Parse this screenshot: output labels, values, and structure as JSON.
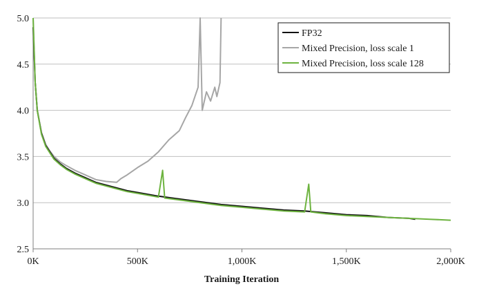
{
  "chart_data": {
    "type": "line",
    "title": "",
    "xlabel": "Training Iteration",
    "ylabel": "",
    "xlim": [
      0,
      2000000
    ],
    "ylim": [
      2.5,
      5.0
    ],
    "x_ticks": [
      0,
      500000,
      1000000,
      1500000,
      2000000
    ],
    "x_tick_labels": [
      "0K",
      "500K",
      "1,000K",
      "1,500K",
      "2,000K"
    ],
    "y_ticks": [
      2.5,
      3.0,
      3.5,
      4.0,
      4.5,
      5.0
    ],
    "y_tick_labels": [
      "2.5",
      "3.0",
      "3.5",
      "4.0",
      "4.5",
      "5.0"
    ],
    "grid": "horizontal",
    "legend_position": "top-right",
    "series": [
      {
        "name": "FP32",
        "color": "#111111",
        "x": [
          0,
          10000,
          20000,
          40000,
          60000,
          80000,
          100000,
          130000,
          160000,
          200000,
          250000,
          300000,
          350000,
          400000,
          450000,
          500000,
          600000,
          700000,
          800000,
          900000,
          1000000,
          1100000,
          1200000,
          1300000,
          1400000,
          1500000,
          1600000,
          1700000,
          1800000,
          1830000
        ],
        "y": [
          4.9,
          4.3,
          4.0,
          3.75,
          3.62,
          3.55,
          3.48,
          3.42,
          3.37,
          3.32,
          3.27,
          3.22,
          3.19,
          3.16,
          3.13,
          3.11,
          3.07,
          3.04,
          3.01,
          2.98,
          2.96,
          2.94,
          2.92,
          2.91,
          2.89,
          2.87,
          2.86,
          2.84,
          2.83,
          2.82
        ]
      },
      {
        "name": "Mixed Precision, loss scale 1",
        "color": "#a6a6a6",
        "x": [
          0,
          10000,
          20000,
          40000,
          60000,
          80000,
          100000,
          130000,
          160000,
          200000,
          250000,
          300000,
          350000,
          400000,
          420000,
          450000,
          500000,
          550000,
          600000,
          650000,
          700000,
          730000,
          760000,
          790000,
          800000,
          810000,
          830000,
          850000,
          870000,
          880000,
          895000,
          900000
        ],
        "y": [
          5.0,
          4.3,
          4.0,
          3.76,
          3.63,
          3.56,
          3.5,
          3.44,
          3.4,
          3.35,
          3.3,
          3.25,
          3.23,
          3.22,
          3.26,
          3.3,
          3.38,
          3.45,
          3.55,
          3.68,
          3.78,
          3.92,
          4.05,
          4.25,
          5.0,
          4.0,
          4.2,
          4.1,
          4.25,
          4.15,
          4.3,
          5.0
        ]
      },
      {
        "name": "Mixed Precision, loss scale 128",
        "color": "#6db33f",
        "x": [
          0,
          10000,
          20000,
          40000,
          60000,
          80000,
          100000,
          130000,
          160000,
          200000,
          250000,
          300000,
          350000,
          400000,
          450000,
          500000,
          600000,
          620000,
          630000,
          700000,
          800000,
          900000,
          1000000,
          1100000,
          1200000,
          1300000,
          1320000,
          1330000,
          1400000,
          1500000,
          1600000,
          1700000,
          1800000,
          1900000,
          2000000
        ],
        "y": [
          5.0,
          4.3,
          4.0,
          3.74,
          3.61,
          3.54,
          3.47,
          3.41,
          3.36,
          3.31,
          3.26,
          3.21,
          3.18,
          3.15,
          3.12,
          3.1,
          3.06,
          3.35,
          3.05,
          3.03,
          3.0,
          2.97,
          2.95,
          2.93,
          2.91,
          2.9,
          3.2,
          2.9,
          2.88,
          2.86,
          2.85,
          2.84,
          2.83,
          2.82,
          2.81
        ]
      }
    ]
  }
}
